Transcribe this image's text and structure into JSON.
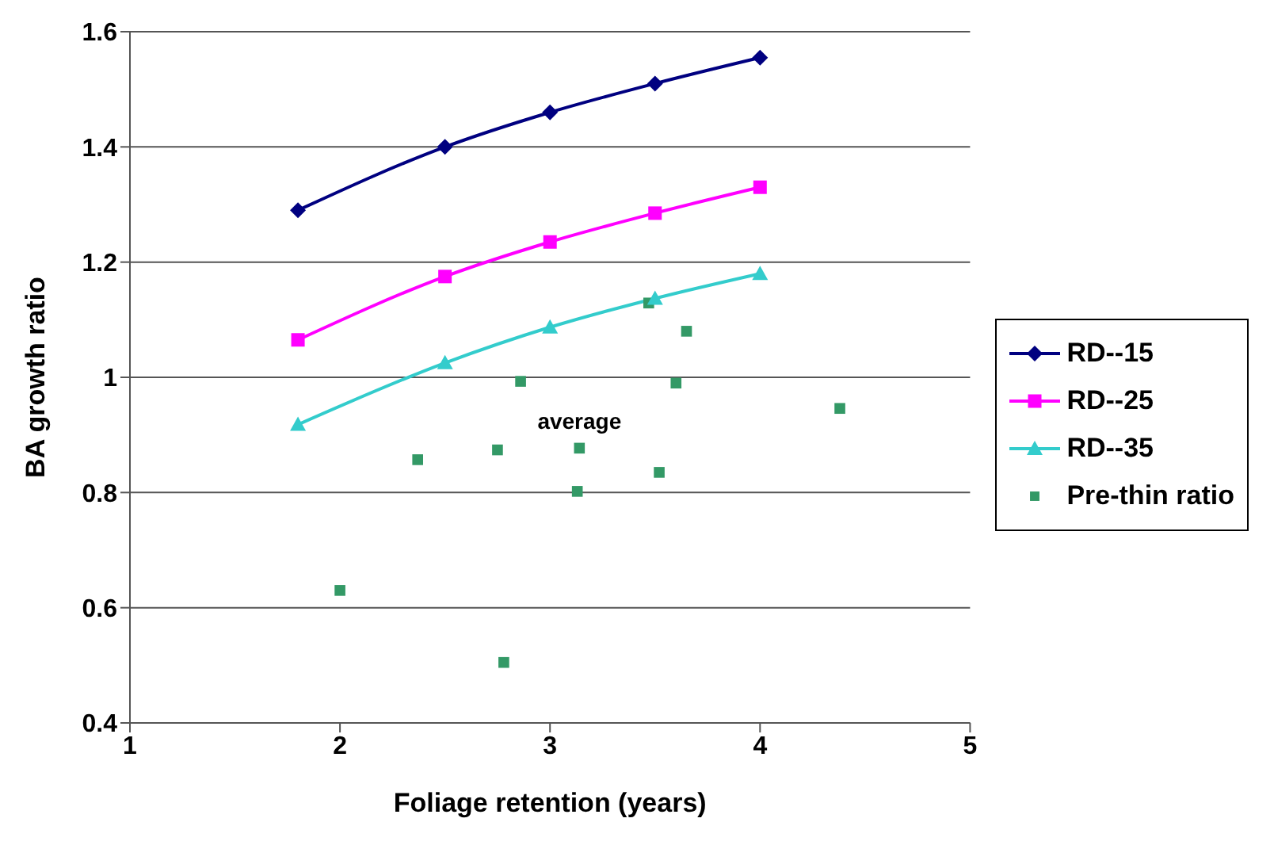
{
  "chart_data": {
    "type": "line",
    "xlabel": "Foliage retention (years)",
    "ylabel": "BA growth ratio",
    "xlim": [
      1,
      5
    ],
    "xticks": [
      1,
      2,
      3,
      4,
      5
    ],
    "ylim": [
      0.4,
      1.6
    ],
    "yticks": [
      0.4,
      0.6,
      0.8,
      1,
      1.2,
      1.4,
      1.6
    ],
    "grid": "y",
    "legend": "right",
    "series": [
      {
        "name": "RD--15",
        "marker": "diamond",
        "color": "#000080",
        "x": [
          1.8,
          2.5,
          3,
          3.5,
          4
        ],
        "values": [
          1.29,
          1.4,
          1.46,
          1.51,
          1.555
        ]
      },
      {
        "name": "RD--25",
        "marker": "square",
        "color": "#ff00ff",
        "x": [
          1.8,
          2.5,
          3,
          3.5,
          4
        ],
        "values": [
          1.065,
          1.175,
          1.235,
          1.285,
          1.33
        ]
      },
      {
        "name": "RD--35",
        "marker": "triangle",
        "color": "#33cccc",
        "x": [
          1.8,
          2.5,
          3,
          3.5,
          4
        ],
        "values": [
          0.918,
          1.025,
          1.087,
          1.137,
          1.18
        ]
      },
      {
        "name": "Pre-thin ratio",
        "type": "scatter",
        "marker": "square",
        "color": "#339966",
        "x": [
          2.0,
          2.37,
          2.75,
          2.78,
          2.86,
          3.13,
          3.14,
          3.47,
          3.52,
          3.6,
          3.65,
          4.38
        ],
        "values": [
          0.63,
          0.857,
          0.874,
          0.505,
          0.993,
          0.802,
          0.877,
          1.129,
          0.835,
          0.99,
          1.08,
          0.946
        ]
      }
    ],
    "annotations": [
      {
        "text": "average",
        "x": 3.14,
        "y": 0.877
      }
    ]
  }
}
